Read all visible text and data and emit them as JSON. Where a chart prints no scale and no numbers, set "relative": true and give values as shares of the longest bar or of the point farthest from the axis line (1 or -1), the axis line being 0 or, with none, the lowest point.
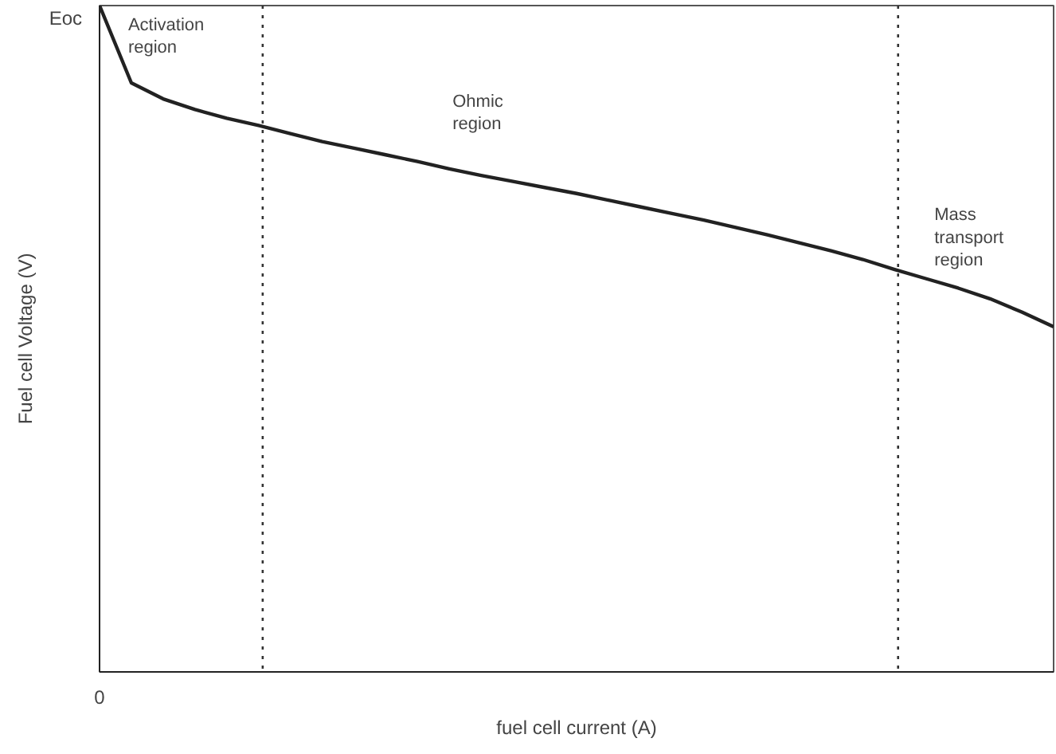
{
  "chart_data": {
    "type": "line",
    "relative": true,
    "xlabel": "fuel cell current (A)",
    "ylabel": "Fuel cell Voltage (V)",
    "marker": "none",
    "line_style": "solid",
    "categories": [
      null,
      null,
      null,
      null,
      null,
      null,
      null,
      null,
      null,
      null,
      null,
      null,
      null,
      null,
      null,
      null,
      null,
      null,
      null,
      null,
      null,
      null,
      null,
      null,
      null,
      null,
      null,
      null,
      null,
      null,
      null
    ],
    "series": [
      {
        "color": "#222222",
        "values": [
          1.0,
          0.884,
          0.86,
          0.844,
          0.831,
          0.82,
          0.808,
          0.796,
          0.786,
          0.776,
          0.766,
          0.755,
          0.745,
          0.736,
          0.727,
          0.718,
          0.708,
          0.698,
          0.688,
          0.678,
          0.667,
          0.656,
          0.644,
          0.632,
          0.619,
          0.604,
          0.59,
          0.576,
          0.56,
          0.54,
          0.518
        ]
      }
    ],
    "annotations": [
      "Eoc",
      "0",
      "Activation\nregion",
      "Ohmic\nregion",
      "Mass\ntransport\nregion"
    ]
  }
}
